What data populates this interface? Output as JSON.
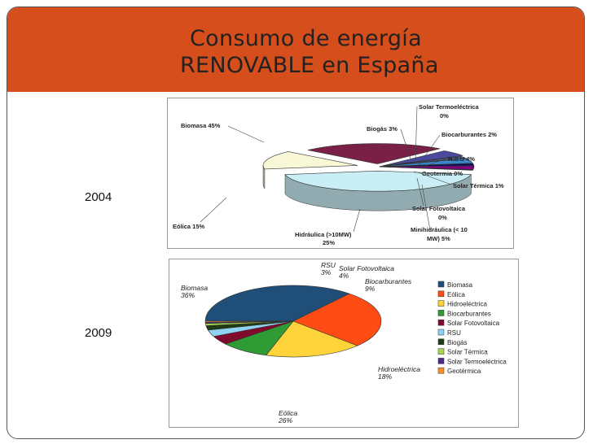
{
  "slide": {
    "title_line1": "Consumo de energía",
    "title_line2": "RENOVABLE en España",
    "accent_color": "#d54e1c"
  },
  "year_labels": [
    "2004",
    "2009"
  ],
  "chart_data": [
    {
      "type": "pie",
      "year": "2004",
      "title": "",
      "style": "3d-exploded",
      "label_style": "callouts with leader lines",
      "categories": [
        "Biomasa",
        "Eólica",
        "Hidráulica (>10MW)",
        "Minihidráulica (< 10 MW)",
        "Solar Fotovoltaica",
        "Solar Térmica",
        "Geotermia",
        "R.S.U",
        "Biocarburantes",
        "Biogás",
        "Solar Termoeléctrica"
      ],
      "labels": [
        "Biomasa 45%",
        "Eólica 15%",
        "Hidráulica (>10MW)",
        "25%",
        "Minihidráulica (< 10",
        "MW) 5%",
        "Solar Fotovoltaica",
        "0%",
        "Solar Térmica 1%",
        "Geotermia 0%",
        "R.S.U 4%",
        "Biocarburantes 2%",
        "Biogás 3%",
        "Solar Termoeléctrica",
        "0%"
      ],
      "values": [
        45,
        15,
        25,
        5,
        0,
        1,
        0,
        4,
        2,
        3,
        0
      ],
      "unit": "%",
      "colors": [
        "#c9eef6",
        "#f8f7d6",
        "#7a1f45",
        "#4a4aa0",
        "#7a7ad8",
        "#5c7ed8",
        "#9090d0",
        "#3a86c8",
        "#10105a",
        "#800080",
        "#2a2a80"
      ]
    },
    {
      "type": "pie",
      "year": "2009",
      "title": "",
      "style": "3d",
      "legend_position": "right",
      "categories": [
        "Biomasa",
        "Eólica",
        "Hidroeléctrica",
        "Biocarburantes",
        "Solar Fotovoltaica",
        "RSU",
        "Biogás",
        "Solar Térmica",
        "Solar Termoeléctrica",
        "Geotérmica"
      ],
      "values": [
        36,
        26,
        18,
        9,
        4,
        3,
        2,
        1,
        0.5,
        0.5
      ],
      "unit": "%",
      "colors": [
        "#1f4e79",
        "#ff4b14",
        "#ffd43b",
        "#2f9b34",
        "#7f0a2c",
        "#8fd2f2",
        "#1e3d16",
        "#a4d84c",
        "#4d2a86",
        "#ff8c2a"
      ],
      "slice_labels": [
        {
          "name": "Biomasa",
          "value": "36%"
        },
        {
          "name": "Eólica",
          "value": "26%"
        },
        {
          "name": "Hidroeléctrica",
          "value": "18%"
        },
        {
          "name": "Biocarburantes",
          "value": "9%"
        },
        {
          "name": "Solar Fotovoltaica",
          "value": "4%"
        },
        {
          "name": "RSU",
          "value": "3%"
        }
      ]
    }
  ]
}
